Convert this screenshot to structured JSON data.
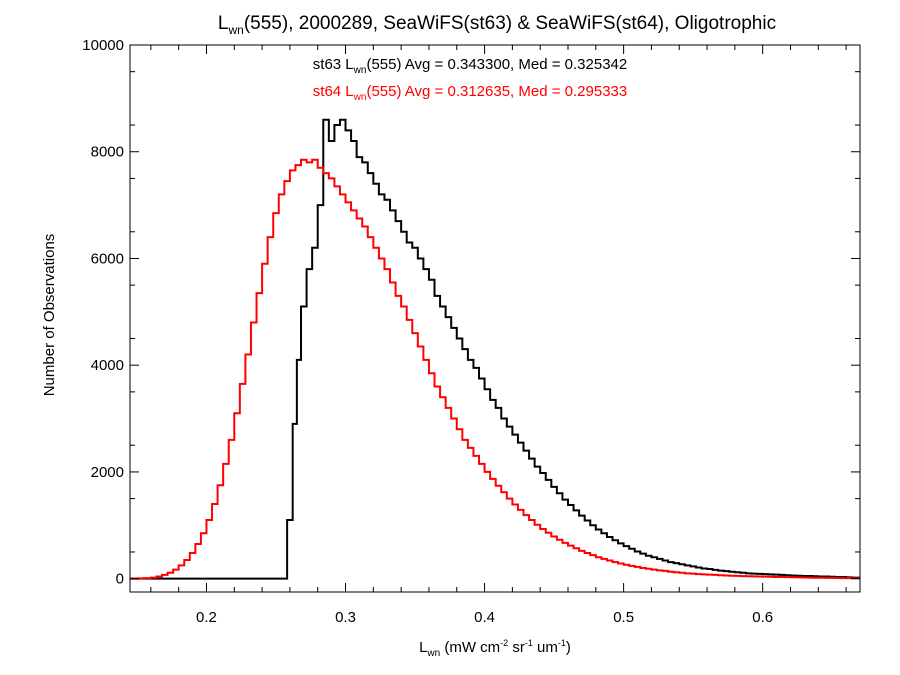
{
  "chart_data": {
    "type": "histogram-step",
    "title_parts": {
      "main": "L",
      "sub": "wn",
      "rest": "(555), 2000289, SeaWiFS(st63) & SeaWiFS(st64), Oligotrophic"
    },
    "xlabel_parts": {
      "main": "L",
      "sub": "wn",
      "u1": " (mW cm",
      "s1": "-2",
      "u2": " sr",
      "s2": "-1",
      "u3": " um",
      "s3": "-1",
      "u4": ")"
    },
    "ylabel": "Number of Observations",
    "xlim": [
      0.145,
      0.67
    ],
    "ylim": [
      -250,
      10000
    ],
    "xticks": [
      0.2,
      0.3,
      0.4,
      0.5,
      0.6
    ],
    "xtick_labels": [
      "0.2",
      "0.3",
      "0.4",
      "0.5",
      "0.6"
    ],
    "yticks": [
      0,
      2000,
      4000,
      6000,
      8000,
      10000
    ],
    "ytick_labels": [
      "0",
      "2000",
      "4000",
      "6000",
      "8000",
      "10000"
    ],
    "annotations": [
      {
        "id": "st63",
        "pre": "st63 L",
        "sub": "wn",
        "post": "(555) Avg = 0.343300, Med = 0.325342",
        "color": "#000000"
      },
      {
        "id": "st64",
        "pre": "st64 L",
        "sub": "wn",
        "post": "(555) Avg = 0.312635, Med = 0.295333",
        "color": "#ff0000"
      }
    ],
    "series": [
      {
        "id": "st63",
        "color": "#000000",
        "points": [
          [
            0.145,
            0
          ],
          [
            0.256,
            0
          ],
          [
            0.258,
            1100
          ],
          [
            0.262,
            2900
          ],
          [
            0.265,
            4100
          ],
          [
            0.268,
            5100
          ],
          [
            0.272,
            5800
          ],
          [
            0.276,
            6200
          ],
          [
            0.28,
            7000
          ],
          [
            0.284,
            8600
          ],
          [
            0.288,
            8200
          ],
          [
            0.292,
            8500
          ],
          [
            0.296,
            8600
          ],
          [
            0.3,
            8400
          ],
          [
            0.304,
            8200
          ],
          [
            0.308,
            7900
          ],
          [
            0.312,
            7800
          ],
          [
            0.316,
            7600
          ],
          [
            0.32,
            7400
          ],
          [
            0.324,
            7200
          ],
          [
            0.328,
            7100
          ],
          [
            0.332,
            6900
          ],
          [
            0.336,
            6700
          ],
          [
            0.34,
            6500
          ],
          [
            0.344,
            6300
          ],
          [
            0.348,
            6200
          ],
          [
            0.352,
            6000
          ],
          [
            0.356,
            5800
          ],
          [
            0.36,
            5600
          ],
          [
            0.364,
            5300
          ],
          [
            0.368,
            5100
          ],
          [
            0.372,
            4900
          ],
          [
            0.376,
            4700
          ],
          [
            0.38,
            4500
          ],
          [
            0.384,
            4300
          ],
          [
            0.388,
            4100
          ],
          [
            0.392,
            3950
          ],
          [
            0.396,
            3750
          ],
          [
            0.4,
            3550
          ],
          [
            0.404,
            3350
          ],
          [
            0.408,
            3200
          ],
          [
            0.412,
            3000
          ],
          [
            0.416,
            2850
          ],
          [
            0.42,
            2700
          ],
          [
            0.424,
            2550
          ],
          [
            0.428,
            2400
          ],
          [
            0.432,
            2250
          ],
          [
            0.436,
            2100
          ],
          [
            0.44,
            1980
          ],
          [
            0.444,
            1850
          ],
          [
            0.448,
            1720
          ],
          [
            0.452,
            1600
          ],
          [
            0.456,
            1480
          ],
          [
            0.46,
            1380
          ],
          [
            0.464,
            1280
          ],
          [
            0.468,
            1180
          ],
          [
            0.472,
            1090
          ],
          [
            0.476,
            1000
          ],
          [
            0.48,
            920
          ],
          [
            0.484,
            850
          ],
          [
            0.488,
            780
          ],
          [
            0.492,
            720
          ],
          [
            0.496,
            660
          ],
          [
            0.5,
            610
          ],
          [
            0.504,
            560
          ],
          [
            0.508,
            510
          ],
          [
            0.512,
            470
          ],
          [
            0.516,
            430
          ],
          [
            0.52,
            400
          ],
          [
            0.524,
            370
          ],
          [
            0.528,
            340
          ],
          [
            0.532,
            310
          ],
          [
            0.536,
            290
          ],
          [
            0.54,
            270
          ],
          [
            0.544,
            250
          ],
          [
            0.548,
            230
          ],
          [
            0.552,
            210
          ],
          [
            0.556,
            190
          ],
          [
            0.56,
            180
          ],
          [
            0.564,
            165
          ],
          [
            0.568,
            150
          ],
          [
            0.572,
            140
          ],
          [
            0.576,
            130
          ],
          [
            0.58,
            120
          ],
          [
            0.584,
            110
          ],
          [
            0.588,
            100
          ],
          [
            0.592,
            95
          ],
          [
            0.596,
            90
          ],
          [
            0.6,
            85
          ],
          [
            0.604,
            80
          ],
          [
            0.608,
            75
          ],
          [
            0.612,
            70
          ],
          [
            0.616,
            65
          ],
          [
            0.62,
            60
          ],
          [
            0.624,
            55
          ],
          [
            0.628,
            50
          ],
          [
            0.632,
            50
          ],
          [
            0.636,
            45
          ],
          [
            0.64,
            40
          ],
          [
            0.644,
            40
          ],
          [
            0.648,
            35
          ],
          [
            0.652,
            30
          ],
          [
            0.656,
            30
          ],
          [
            0.66,
            25
          ],
          [
            0.664,
            20
          ],
          [
            0.67,
            20
          ]
        ]
      },
      {
        "id": "st64",
        "color": "#ff0000",
        "points": [
          [
            0.145,
            0
          ],
          [
            0.15,
            5
          ],
          [
            0.155,
            10
          ],
          [
            0.16,
            20
          ],
          [
            0.164,
            40
          ],
          [
            0.168,
            70
          ],
          [
            0.172,
            110
          ],
          [
            0.176,
            170
          ],
          [
            0.18,
            250
          ],
          [
            0.184,
            350
          ],
          [
            0.188,
            480
          ],
          [
            0.192,
            650
          ],
          [
            0.196,
            850
          ],
          [
            0.2,
            1100
          ],
          [
            0.204,
            1400
          ],
          [
            0.208,
            1750
          ],
          [
            0.212,
            2150
          ],
          [
            0.216,
            2600
          ],
          [
            0.22,
            3100
          ],
          [
            0.224,
            3650
          ],
          [
            0.228,
            4200
          ],
          [
            0.232,
            4800
          ],
          [
            0.236,
            5350
          ],
          [
            0.24,
            5900
          ],
          [
            0.244,
            6400
          ],
          [
            0.248,
            6850
          ],
          [
            0.252,
            7200
          ],
          [
            0.256,
            7450
          ],
          [
            0.26,
            7650
          ],
          [
            0.264,
            7750
          ],
          [
            0.268,
            7850
          ],
          [
            0.272,
            7800
          ],
          [
            0.276,
            7850
          ],
          [
            0.28,
            7700
          ],
          [
            0.284,
            7600
          ],
          [
            0.288,
            7500
          ],
          [
            0.292,
            7350
          ],
          [
            0.296,
            7200
          ],
          [
            0.3,
            7050
          ],
          [
            0.304,
            6900
          ],
          [
            0.308,
            6750
          ],
          [
            0.312,
            6600
          ],
          [
            0.316,
            6400
          ],
          [
            0.32,
            6200
          ],
          [
            0.324,
            6000
          ],
          [
            0.328,
            5800
          ],
          [
            0.332,
            5550
          ],
          [
            0.336,
            5300
          ],
          [
            0.34,
            5100
          ],
          [
            0.344,
            4850
          ],
          [
            0.348,
            4600
          ],
          [
            0.352,
            4350
          ],
          [
            0.356,
            4100
          ],
          [
            0.36,
            3850
          ],
          [
            0.364,
            3600
          ],
          [
            0.368,
            3400
          ],
          [
            0.372,
            3200
          ],
          [
            0.376,
            3000
          ],
          [
            0.38,
            2800
          ],
          [
            0.384,
            2600
          ],
          [
            0.388,
            2450
          ],
          [
            0.392,
            2300
          ],
          [
            0.396,
            2150
          ],
          [
            0.4,
            2000
          ],
          [
            0.404,
            1870
          ],
          [
            0.408,
            1740
          ],
          [
            0.412,
            1620
          ],
          [
            0.416,
            1500
          ],
          [
            0.42,
            1390
          ],
          [
            0.424,
            1290
          ],
          [
            0.428,
            1190
          ],
          [
            0.432,
            1100
          ],
          [
            0.436,
            1010
          ],
          [
            0.44,
            930
          ],
          [
            0.444,
            860
          ],
          [
            0.448,
            790
          ],
          [
            0.452,
            730
          ],
          [
            0.456,
            670
          ],
          [
            0.46,
            620
          ],
          [
            0.464,
            570
          ],
          [
            0.468,
            520
          ],
          [
            0.472,
            480
          ],
          [
            0.476,
            440
          ],
          [
            0.48,
            400
          ],
          [
            0.484,
            370
          ],
          [
            0.488,
            340
          ],
          [
            0.492,
            310
          ],
          [
            0.496,
            285
          ],
          [
            0.5,
            260
          ],
          [
            0.504,
            240
          ],
          [
            0.508,
            220
          ],
          [
            0.512,
            200
          ],
          [
            0.516,
            185
          ],
          [
            0.52,
            170
          ],
          [
            0.524,
            155
          ],
          [
            0.528,
            145
          ],
          [
            0.532,
            130
          ],
          [
            0.536,
            120
          ],
          [
            0.54,
            110
          ],
          [
            0.544,
            100
          ],
          [
            0.548,
            95
          ],
          [
            0.552,
            85
          ],
          [
            0.556,
            80
          ],
          [
            0.56,
            75
          ],
          [
            0.564,
            70
          ],
          [
            0.568,
            65
          ],
          [
            0.572,
            60
          ],
          [
            0.576,
            55
          ],
          [
            0.58,
            52
          ],
          [
            0.584,
            48
          ],
          [
            0.588,
            45
          ],
          [
            0.592,
            42
          ],
          [
            0.596,
            40
          ],
          [
            0.6,
            38
          ],
          [
            0.604,
            35
          ],
          [
            0.608,
            32
          ],
          [
            0.612,
            30
          ],
          [
            0.616,
            28
          ],
          [
            0.62,
            26
          ],
          [
            0.624,
            24
          ],
          [
            0.628,
            22
          ],
          [
            0.632,
            20
          ],
          [
            0.636,
            18
          ],
          [
            0.64,
            16
          ],
          [
            0.644,
            15
          ],
          [
            0.648,
            14
          ],
          [
            0.652,
            12
          ],
          [
            0.656,
            11
          ],
          [
            0.66,
            10
          ],
          [
            0.664,
            8
          ],
          [
            0.67,
            8
          ]
        ]
      }
    ]
  }
}
